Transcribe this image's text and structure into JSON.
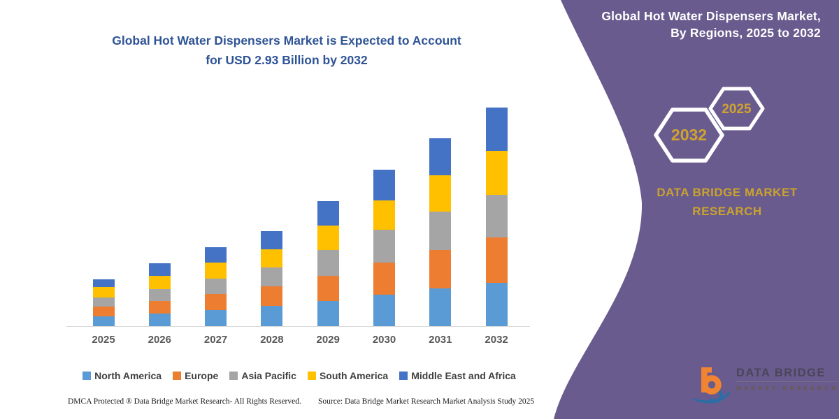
{
  "chart": {
    "title_line1": "Global Hot Water Dispensers Market is Expected to Account",
    "title_line2": "for USD 2.93 Billion by 2032",
    "title_color": "#2F5496"
  },
  "chart_data": {
    "type": "bar",
    "stacked": true,
    "title": "Global Hot Water Dispensers Market is Expected to Account for USD 2.93 Billion by 2032",
    "unit": "USD Billion",
    "categories": [
      "2025",
      "2026",
      "2027",
      "2028",
      "2029",
      "2030",
      "2031",
      "2032"
    ],
    "series": [
      {
        "name": "North America",
        "color": "#5B9BD5",
        "values": [
          0.13,
          0.17,
          0.22,
          0.27,
          0.34,
          0.42,
          0.51,
          0.58
        ]
      },
      {
        "name": "Europe",
        "color": "#ED7D31",
        "values": [
          0.13,
          0.17,
          0.21,
          0.26,
          0.33,
          0.43,
          0.51,
          0.61
        ]
      },
      {
        "name": "Asia Pacific",
        "color": "#A5A5A5",
        "values": [
          0.12,
          0.16,
          0.21,
          0.26,
          0.35,
          0.44,
          0.52,
          0.57
        ]
      },
      {
        "name": "South America",
        "color": "#FFC000",
        "values": [
          0.14,
          0.17,
          0.21,
          0.24,
          0.33,
          0.4,
          0.48,
          0.59
        ]
      },
      {
        "name": "Middle East and Africa",
        "color": "#4472C4",
        "values": [
          0.11,
          0.17,
          0.21,
          0.24,
          0.33,
          0.41,
          0.5,
          0.58
        ]
      }
    ],
    "totals": [
      0.63,
      0.84,
      1.06,
      1.27,
      1.68,
      2.1,
      2.52,
      2.93
    ],
    "xlabel": "",
    "ylabel": "",
    "ylim": [
      0,
      3.1
    ],
    "grid": false,
    "legend_position": "bottom"
  },
  "side_panel": {
    "panel_color": "#6A5B8F",
    "gold_color": "#CFA32F",
    "title_line1": "Global Hot Water Dispensers Market,",
    "title_line2": "By Regions, 2025 to 2032",
    "hexagon_large_label": "2032",
    "hexagon_small_label": "2025",
    "brand_line1": "DATA BRIDGE MARKET",
    "brand_line2": "RESEARCH"
  },
  "logo": {
    "line1": "DATA BRIDGE",
    "line2": "MARKET RESEARCH"
  },
  "footer": {
    "left": "DMCA Protected ® Data Bridge Market Research-  All Rights Reserved.",
    "source": "Source: Data Bridge Market Research  Market Analysis Study 2025"
  }
}
